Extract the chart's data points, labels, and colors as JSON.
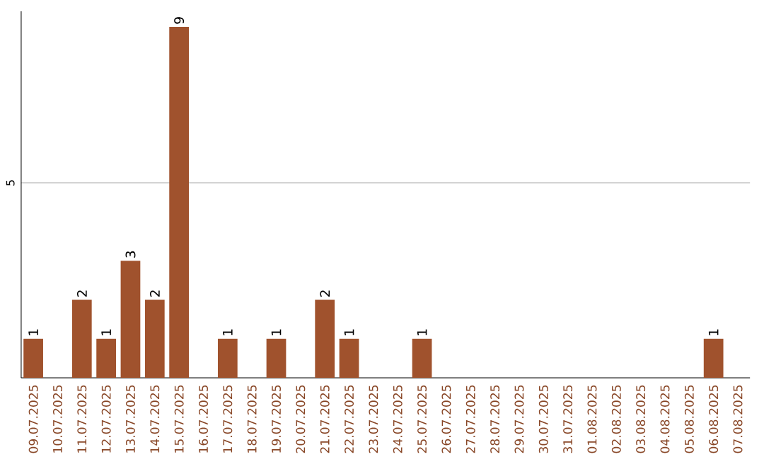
{
  "chart_data": {
    "type": "bar",
    "categories": [
      "09.07.2025",
      "10.07.2025",
      "11.07.2025",
      "12.07.2025",
      "13.07.2025",
      "14.07.2025",
      "15.07.2025",
      "16.07.2025",
      "17.07.2025",
      "18.07.2025",
      "19.07.2025",
      "20.07.2025",
      "21.07.2025",
      "22.07.2025",
      "23.07.2025",
      "24.07.2025",
      "25.07.2025",
      "26.07.2025",
      "27.07.2025",
      "28.07.2025",
      "29.07.2025",
      "30.07.2025",
      "31.07.2025",
      "01.08.2025",
      "02.08.2025",
      "03.08.2025",
      "04.08.2025",
      "05.08.2025",
      "06.08.2025",
      "07.08.2025"
    ],
    "values": [
      1,
      0,
      2,
      1,
      3,
      2,
      9,
      0,
      1,
      0,
      1,
      0,
      2,
      1,
      0,
      0,
      1,
      0,
      0,
      0,
      0,
      0,
      0,
      0,
      0,
      0,
      0,
      0,
      1,
      0
    ],
    "value_labels": [
      "1",
      null,
      "2",
      "1",
      "3",
      "2",
      "9",
      null,
      "1",
      null,
      "1",
      null,
      "2",
      "1",
      null,
      null,
      "1",
      null,
      null,
      null,
      null,
      null,
      null,
      null,
      null,
      null,
      null,
      null,
      "1",
      null
    ],
    "color": "#a0522d",
    "ylim": [
      0,
      9.4
    ],
    "yticks": [
      5
    ],
    "grid": "y"
  }
}
